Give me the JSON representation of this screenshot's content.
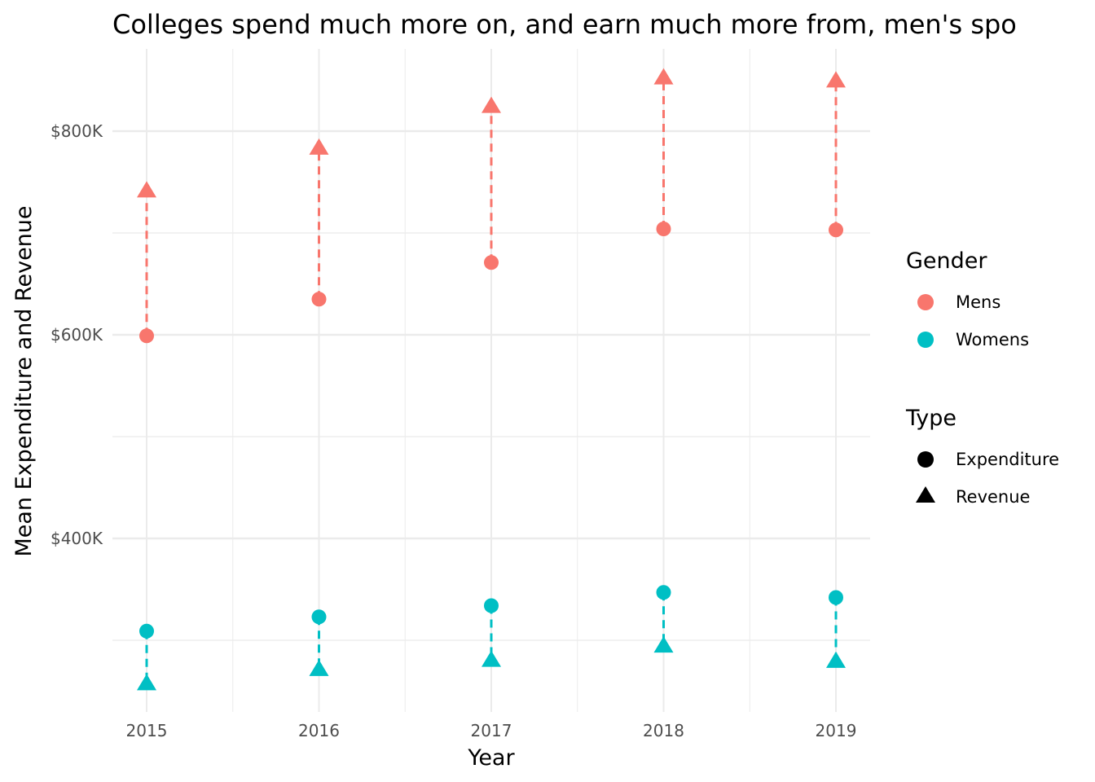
{
  "chart_data": {
    "type": "scatter",
    "title": "Colleges spend much more on, and earn much more from, men's spo",
    "xlabel": "Year",
    "ylabel": "Mean Expenditure and Revenue",
    "x": [
      "2015",
      "2016",
      "2017",
      "2018",
      "2019"
    ],
    "ylim": [
      215000,
      865000
    ],
    "yticks": [
      {
        "value": 400000,
        "label": "$400K"
      },
      {
        "value": 600000,
        "label": "$600K"
      },
      {
        "value": 800000,
        "label": "$800K"
      }
    ],
    "grid": true,
    "legend_position": "right",
    "series": [
      {
        "name": "Mens",
        "type": "Expenditure",
        "shape": "circle",
        "color": "#F8766D",
        "values": [
          599000,
          635000,
          671000,
          704000,
          703000
        ]
      },
      {
        "name": "Mens",
        "type": "Revenue",
        "shape": "triangle",
        "color": "#F8766D",
        "values": [
          741000,
          783000,
          824000,
          852000,
          849000
        ]
      },
      {
        "name": "Womens",
        "type": "Expenditure",
        "shape": "circle",
        "color": "#00BFC4",
        "values": [
          309000,
          323000,
          334000,
          347000,
          342000
        ]
      },
      {
        "name": "Womens",
        "type": "Revenue",
        "shape": "triangle",
        "color": "#00BFC4",
        "values": [
          257000,
          271000,
          280000,
          294000,
          279000
        ]
      }
    ],
    "legend": {
      "gender": {
        "title": "Gender",
        "items": [
          {
            "label": "Mens",
            "color": "#F8766D"
          },
          {
            "label": "Womens",
            "color": "#00BFC4"
          }
        ]
      },
      "type": {
        "title": "Type",
        "items": [
          {
            "label": "Expenditure",
            "shape": "circle"
          },
          {
            "label": "Revenue",
            "shape": "triangle"
          }
        ]
      }
    }
  }
}
